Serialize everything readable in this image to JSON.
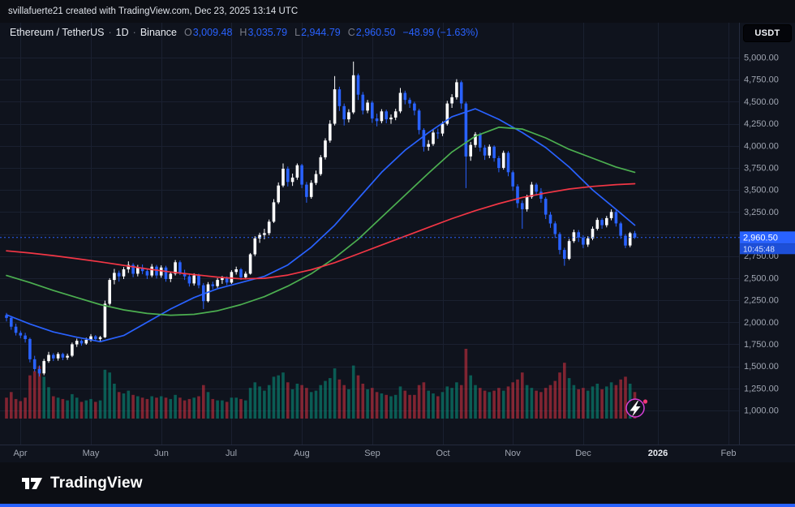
{
  "topbar": {
    "text": "svillafuerte21 created with TradingView.com, Dec 23, 2025 13:14 UTC"
  },
  "legend": {
    "symbol": "Ethereum / TetherUS",
    "dot": "·",
    "interval": "1D",
    "exchange": "Binance",
    "o_label": "O",
    "open": "3,009.48",
    "h_label": "H",
    "high": "3,035.79",
    "l_label": "L",
    "low": "2,944.79",
    "c_label": "C",
    "close": "2,960.50",
    "change": "−48.99 (−1.63%)"
  },
  "axis_button": {
    "label": "USDT"
  },
  "footer": {
    "brand": "TradingView"
  },
  "colors": {
    "background": "#0f131d",
    "panel": "#0c0e14",
    "grid": "#1a2030",
    "axis_border": "#242b3d",
    "text_muted": "#a0a6b2",
    "text_bright": "#e7eaf0",
    "up": "#ffffff",
    "down": "#2962ff",
    "ma_blue": "#2962ff",
    "ma_green": "#4caf50",
    "ma_red": "#f23645",
    "vol_up": "rgba(8,153,129,0.55)",
    "vol_down": "rgba(242,54,69,0.5)",
    "badge_bg": "#2962ff",
    "countdown_bg": "#1d4fd8",
    "flash_icon": "#d53fd8",
    "footer_bar": "#2962ff"
  },
  "chart_data": {
    "type": "candlestick",
    "title": "Ethereum / TetherUS, 1D, Binance",
    "last": {
      "open": 3009.48,
      "high": 3035.79,
      "low": 2944.79,
      "close": 2960.5,
      "change": -48.99,
      "change_pct": -1.63
    },
    "last_price": 2960.5,
    "badge": {
      "price": "2,960.50",
      "countdown": "10:45:48"
    },
    "y_axis": {
      "min": 1000,
      "max": 5000,
      "step": 250,
      "ticks": [
        {
          "v": 5000,
          "t": "5,000.00"
        },
        {
          "v": 4750,
          "t": "4,750.00"
        },
        {
          "v": 4500,
          "t": "4,500.00"
        },
        {
          "v": 4250,
          "t": "4,250.00"
        },
        {
          "v": 4000,
          "t": "4,000.00"
        },
        {
          "v": 3750,
          "t": "3,750.00"
        },
        {
          "v": 3500,
          "t": "3,500.00"
        },
        {
          "v": 3250,
          "t": "3,250.00"
        },
        {
          "v": 2750,
          "t": "2,750.00"
        },
        {
          "v": 2500,
          "t": "2,500.00"
        },
        {
          "v": 2250,
          "t": "2,250.00"
        },
        {
          "v": 2000,
          "t": "2,000.00"
        },
        {
          "v": 1750,
          "t": "1,750.00"
        },
        {
          "v": 1500,
          "t": "1,500.00"
        },
        {
          "v": 1250,
          "t": "1,250.00"
        },
        {
          "v": 1000,
          "t": "1,000.00"
        }
      ]
    },
    "x_axis": {
      "ticks": [
        {
          "label": "Apr",
          "i": 3
        },
        {
          "label": "May",
          "i": 18
        },
        {
          "label": "Jun",
          "i": 33
        },
        {
          "label": "Jul",
          "i": 48
        },
        {
          "label": "Aug",
          "i": 63
        },
        {
          "label": "Sep",
          "i": 78
        },
        {
          "label": "Oct",
          "i": 93
        },
        {
          "label": "Nov",
          "i": 108
        },
        {
          "label": "Dec",
          "i": 123
        },
        {
          "label": "2026",
          "i": 139,
          "major": true
        },
        {
          "label": "Feb",
          "i": 154
        }
      ]
    },
    "candles": [
      [
        2080,
        2105,
        2010,
        2050
      ],
      [
        2050,
        2070,
        1915,
        1950
      ],
      [
        1950,
        1985,
        1850,
        1880
      ],
      [
        1880,
        1905,
        1820,
        1850
      ],
      [
        1850,
        1880,
        1770,
        1810
      ],
      [
        1810,
        1825,
        1545,
        1580
      ],
      [
        1580,
        1620,
        1440,
        1470
      ],
      [
        1470,
        1510,
        1385,
        1420
      ],
      [
        1420,
        1585,
        1400,
        1560
      ],
      [
        1560,
        1665,
        1540,
        1630
      ],
      [
        1630,
        1650,
        1560,
        1590
      ],
      [
        1590,
        1660,
        1565,
        1640
      ],
      [
        1640,
        1655,
        1570,
        1600
      ],
      [
        1600,
        1645,
        1575,
        1620
      ],
      [
        1620,
        1770,
        1605,
        1750
      ],
      [
        1750,
        1815,
        1720,
        1790
      ],
      [
        1790,
        1805,
        1735,
        1760
      ],
      [
        1760,
        1825,
        1745,
        1800
      ],
      [
        1800,
        1865,
        1780,
        1840
      ],
      [
        1840,
        1855,
        1785,
        1810
      ],
      [
        1810,
        1845,
        1775,
        1830
      ],
      [
        1830,
        2245,
        1820,
        2210
      ],
      [
        2210,
        2500,
        2190,
        2480
      ],
      [
        2480,
        2605,
        2430,
        2560
      ],
      [
        2560,
        2585,
        2460,
        2520
      ],
      [
        2520,
        2625,
        2490,
        2600
      ],
      [
        2600,
        2690,
        2560,
        2650
      ],
      [
        2650,
        2670,
        2510,
        2550
      ],
      [
        2550,
        2650,
        2520,
        2620
      ],
      [
        2620,
        2655,
        2545,
        2580
      ],
      [
        2580,
        2605,
        2490,
        2530
      ],
      [
        2530,
        2660,
        2510,
        2630
      ],
      [
        2630,
        2650,
        2495,
        2530
      ],
      [
        2530,
        2645,
        2505,
        2620
      ],
      [
        2620,
        2640,
        2460,
        2490
      ],
      [
        2490,
        2575,
        2455,
        2550
      ],
      [
        2550,
        2705,
        2530,
        2680
      ],
      [
        2680,
        2700,
        2535,
        2560
      ],
      [
        2560,
        2595,
        2480,
        2520
      ],
      [
        2520,
        2545,
        2405,
        2440
      ],
      [
        2440,
        2555,
        2415,
        2530
      ],
      [
        2530,
        2550,
        2385,
        2420
      ],
      [
        2420,
        2445,
        2150,
        2240
      ],
      [
        2240,
        2455,
        2225,
        2430
      ],
      [
        2430,
        2460,
        2375,
        2410
      ],
      [
        2410,
        2500,
        2390,
        2480
      ],
      [
        2480,
        2525,
        2435,
        2500
      ],
      [
        2500,
        2520,
        2420,
        2450
      ],
      [
        2450,
        2590,
        2435,
        2570
      ],
      [
        2570,
        2630,
        2540,
        2600
      ],
      [
        2600,
        2615,
        2480,
        2510
      ],
      [
        2510,
        2575,
        2485,
        2550
      ],
      [
        2550,
        2785,
        2540,
        2770
      ],
      [
        2770,
        2975,
        2750,
        2950
      ],
      [
        2950,
        3015,
        2900,
        2990
      ],
      [
        2990,
        3060,
        2940,
        3010
      ],
      [
        3010,
        3165,
        2985,
        3140
      ],
      [
        3140,
        3395,
        3125,
        3360
      ],
      [
        3360,
        3585,
        3340,
        3550
      ],
      [
        3550,
        3800,
        3530,
        3740
      ],
      [
        3740,
        3765,
        3540,
        3590
      ],
      [
        3590,
        3685,
        3545,
        3640
      ],
      [
        3640,
        3800,
        3615,
        3780
      ],
      [
        3780,
        3795,
        3520,
        3560
      ],
      [
        3560,
        3590,
        3355,
        3420
      ],
      [
        3420,
        3610,
        3400,
        3580
      ],
      [
        3580,
        3720,
        3555,
        3680
      ],
      [
        3680,
        3895,
        3660,
        3870
      ],
      [
        3870,
        4085,
        3845,
        4060
      ],
      [
        4060,
        4290,
        4035,
        4250
      ],
      [
        4250,
        4790,
        4230,
        4640
      ],
      [
        4640,
        4670,
        4395,
        4450
      ],
      [
        4450,
        4480,
        4230,
        4300
      ],
      [
        4300,
        4415,
        4265,
        4380
      ],
      [
        4380,
        4955,
        4360,
        4800
      ],
      [
        4800,
        4820,
        4520,
        4580
      ],
      [
        4580,
        4610,
        4355,
        4400
      ],
      [
        4400,
        4520,
        4370,
        4490
      ],
      [
        4490,
        4510,
        4260,
        4310
      ],
      [
        4310,
        4365,
        4220,
        4280
      ],
      [
        4280,
        4415,
        4255,
        4390
      ],
      [
        4390,
        4410,
        4255,
        4300
      ],
      [
        4300,
        4355,
        4250,
        4320
      ],
      [
        4320,
        4420,
        4290,
        4390
      ],
      [
        4390,
        4655,
        4370,
        4600
      ],
      [
        4600,
        4625,
        4470,
        4520
      ],
      [
        4520,
        4545,
        4430,
        4480
      ],
      [
        4480,
        4500,
        4345,
        4400
      ],
      [
        4400,
        4420,
        4130,
        4180
      ],
      [
        4180,
        4200,
        3935,
        3990
      ],
      [
        3990,
        4065,
        3945,
        4020
      ],
      [
        4020,
        4180,
        4000,
        4150
      ],
      [
        4150,
        4195,
        4080,
        4140
      ],
      [
        4140,
        4275,
        4110,
        4250
      ],
      [
        4250,
        4510,
        4230,
        4480
      ],
      [
        4480,
        4585,
        4430,
        4550
      ],
      [
        4550,
        4755,
        4525,
        4720
      ],
      [
        4720,
        4740,
        4420,
        4480
      ],
      [
        4480,
        4500,
        3520,
        3880
      ],
      [
        3880,
        4045,
        3830,
        4010
      ],
      [
        4010,
        4155,
        3980,
        4130
      ],
      [
        4130,
        4150,
        3935,
        3980
      ],
      [
        3980,
        4010,
        3840,
        3890
      ],
      [
        3890,
        4015,
        3860,
        3990
      ],
      [
        3990,
        4005,
        3820,
        3860
      ],
      [
        3860,
        3885,
        3700,
        3750
      ],
      [
        3750,
        3945,
        3730,
        3920
      ],
      [
        3920,
        3940,
        3655,
        3700
      ],
      [
        3700,
        3720,
        3490,
        3540
      ],
      [
        3540,
        3565,
        3295,
        3350
      ],
      [
        3350,
        3380,
        3060,
        3280
      ],
      [
        3280,
        3445,
        3255,
        3420
      ],
      [
        3420,
        3590,
        3400,
        3560
      ],
      [
        3560,
        3580,
        3435,
        3480
      ],
      [
        3480,
        3520,
        3355,
        3400
      ],
      [
        3400,
        3420,
        3170,
        3220
      ],
      [
        3220,
        3250,
        3070,
        3120
      ],
      [
        3120,
        3145,
        2955,
        3000
      ],
      [
        3000,
        3020,
        2770,
        2820
      ],
      [
        2820,
        2845,
        2640,
        2720
      ],
      [
        2720,
        2945,
        2705,
        2920
      ],
      [
        2920,
        3050,
        2900,
        3020
      ],
      [
        3020,
        3045,
        2910,
        2960
      ],
      [
        2960,
        2985,
        2840,
        2880
      ],
      [
        2880,
        2975,
        2855,
        2950
      ],
      [
        2950,
        3085,
        2930,
        3060
      ],
      [
        3060,
        3185,
        3040,
        3160
      ],
      [
        3160,
        3180,
        3060,
        3100
      ],
      [
        3100,
        3205,
        3075,
        3180
      ],
      [
        3180,
        3280,
        3155,
        3250
      ],
      [
        3250,
        3270,
        3085,
        3120
      ],
      [
        3120,
        3140,
        2945,
        2980
      ],
      [
        2980,
        3000,
        2840,
        2870
      ],
      [
        2870,
        3025,
        2850,
        3009
      ],
      [
        3009.48,
        3035.79,
        2944.79,
        2960.5
      ]
    ],
    "volume_rel": [
      0.3,
      0.38,
      0.28,
      0.25,
      0.3,
      0.62,
      0.68,
      0.75,
      0.6,
      0.45,
      0.32,
      0.3,
      0.28,
      0.26,
      0.35,
      0.3,
      0.24,
      0.26,
      0.28,
      0.24,
      0.26,
      0.7,
      0.66,
      0.5,
      0.38,
      0.36,
      0.4,
      0.34,
      0.32,
      0.3,
      0.28,
      0.32,
      0.3,
      0.32,
      0.3,
      0.28,
      0.34,
      0.3,
      0.26,
      0.28,
      0.3,
      0.32,
      0.48,
      0.38,
      0.28,
      0.26,
      0.26,
      0.24,
      0.3,
      0.3,
      0.28,
      0.26,
      0.44,
      0.52,
      0.46,
      0.4,
      0.48,
      0.6,
      0.62,
      0.66,
      0.52,
      0.42,
      0.5,
      0.48,
      0.44,
      0.38,
      0.4,
      0.48,
      0.54,
      0.58,
      0.72,
      0.56,
      0.48,
      0.42,
      0.76,
      0.62,
      0.5,
      0.42,
      0.44,
      0.38,
      0.36,
      0.34,
      0.32,
      0.34,
      0.46,
      0.4,
      0.34,
      0.34,
      0.48,
      0.52,
      0.4,
      0.36,
      0.32,
      0.38,
      0.46,
      0.44,
      0.52,
      0.48,
      1.0,
      0.62,
      0.48,
      0.44,
      0.4,
      0.38,
      0.4,
      0.44,
      0.4,
      0.46,
      0.52,
      0.56,
      0.66,
      0.48,
      0.44,
      0.4,
      0.38,
      0.44,
      0.48,
      0.54,
      0.66,
      0.8,
      0.58,
      0.48,
      0.42,
      0.44,
      0.4,
      0.46,
      0.5,
      0.42,
      0.46,
      0.52,
      0.48,
      0.56,
      0.6,
      0.5,
      0.38
    ],
    "ma": [
      {
        "name": "blue",
        "color": "ma_blue",
        "step": 5,
        "values": [
          2085,
          1980,
          1890,
          1830,
          1780,
          1850,
          2000,
          2150,
          2280,
          2380,
          2450,
          2520,
          2650,
          2850,
          3100,
          3400,
          3700,
          3950,
          4150,
          4330,
          4420,
          4300,
          4150,
          3980,
          3760,
          3500,
          3280,
          3100
        ]
      },
      {
        "name": "green",
        "color": "ma_green",
        "step": 5,
        "values": [
          2530,
          2450,
          2360,
          2280,
          2200,
          2140,
          2100,
          2080,
          2090,
          2130,
          2200,
          2290,
          2410,
          2550,
          2730,
          2940,
          3190,
          3440,
          3690,
          3930,
          4110,
          4210,
          4190,
          4090,
          3960,
          3860,
          3760,
          3700
        ]
      },
      {
        "name": "red",
        "color": "ma_red",
        "step": 5,
        "values": [
          2810,
          2785,
          2755,
          2720,
          2685,
          2645,
          2605,
          2570,
          2540,
          2512,
          2492,
          2498,
          2535,
          2595,
          2675,
          2775,
          2875,
          2975,
          3075,
          3175,
          3265,
          3345,
          3415,
          3465,
          3510,
          3540,
          3560,
          3570
        ]
      }
    ]
  }
}
